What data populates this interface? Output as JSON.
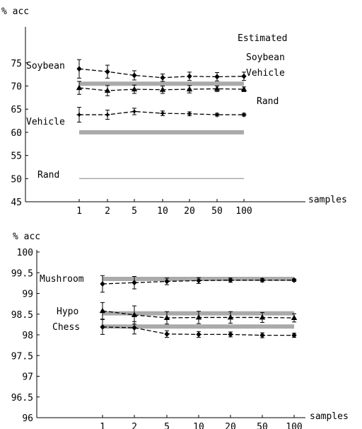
{
  "chart_data": [
    {
      "type": "line",
      "title": "",
      "ylabel": "% acc",
      "xlabel": "samples",
      "x": [
        "1",
        "2",
        "5",
        "10",
        "20",
        "50",
        "100"
      ],
      "ylim": [
        45,
        78
      ],
      "yticks": [
        "45",
        "50",
        "55",
        "60",
        "65",
        "70",
        "75"
      ],
      "annotation": "Estimated",
      "series": [
        {
          "name": "Soybean",
          "marker": "diamond",
          "values": [
            73.7,
            73.1,
            72.3,
            71.8,
            72.1,
            72.0,
            72.1
          ],
          "errors": [
            2.0,
            1.4,
            1.0,
            0.8,
            0.9,
            0.9,
            0.9
          ]
        },
        {
          "name": "Vehicle",
          "marker": "triangle",
          "values": [
            69.6,
            69.0,
            69.3,
            69.2,
            69.3,
            69.4,
            69.3
          ],
          "errors": [
            1.4,
            1.1,
            0.9,
            0.8,
            0.8,
            0.6,
            0.5
          ]
        },
        {
          "name": "Rand",
          "marker": "star",
          "values": [
            63.8,
            63.8,
            64.5,
            64.1,
            64.0,
            63.8,
            63.8
          ],
          "errors": [
            1.6,
            1.0,
            0.7,
            0.5,
            0.4,
            0.3,
            0.3
          ]
        }
      ],
      "references": [
        {
          "name": "Soybean",
          "value": 70.5,
          "thick": true
        },
        {
          "name": "Vehicle",
          "value": 60.0,
          "thick": true
        },
        {
          "name": "Rand",
          "value": 50.0,
          "thick": false
        }
      ]
    },
    {
      "type": "line",
      "title": "",
      "ylabel": "% acc",
      "xlabel": "samples",
      "x": [
        "1",
        "2",
        "5",
        "10",
        "20",
        "50",
        "100"
      ],
      "ylim": [
        96,
        100
      ],
      "yticks": [
        "96",
        "96.5",
        "97",
        "97.5",
        "98",
        "98.5",
        "99",
        "99.5",
        "100"
      ],
      "series": [
        {
          "name": "Mushroom",
          "marker": "diamond",
          "values": [
            99.23,
            99.26,
            99.29,
            99.31,
            99.32,
            99.32,
            99.32
          ],
          "errors": [
            0.2,
            0.15,
            0.08,
            0.07,
            0.05,
            0.04,
            0.03
          ]
        },
        {
          "name": "Hypo",
          "marker": "triangle",
          "values": [
            98.58,
            98.48,
            98.41,
            98.42,
            98.42,
            98.42,
            98.41
          ],
          "errors": [
            0.2,
            0.22,
            0.15,
            0.15,
            0.14,
            0.12,
            0.1
          ]
        },
        {
          "name": "Chess",
          "marker": "diamond",
          "values": [
            98.19,
            98.17,
            98.02,
            98.01,
            98.01,
            97.99,
            97.99
          ],
          "errors": [
            0.18,
            0.15,
            0.08,
            0.07,
            0.06,
            0.06,
            0.05
          ]
        }
      ],
      "references": [
        {
          "name": "Mushroom",
          "value": 99.35,
          "thick": true
        },
        {
          "name": "Hypo",
          "value": 98.52,
          "thick": true
        },
        {
          "name": "Chess",
          "value": 98.2,
          "thick": true
        }
      ]
    }
  ]
}
